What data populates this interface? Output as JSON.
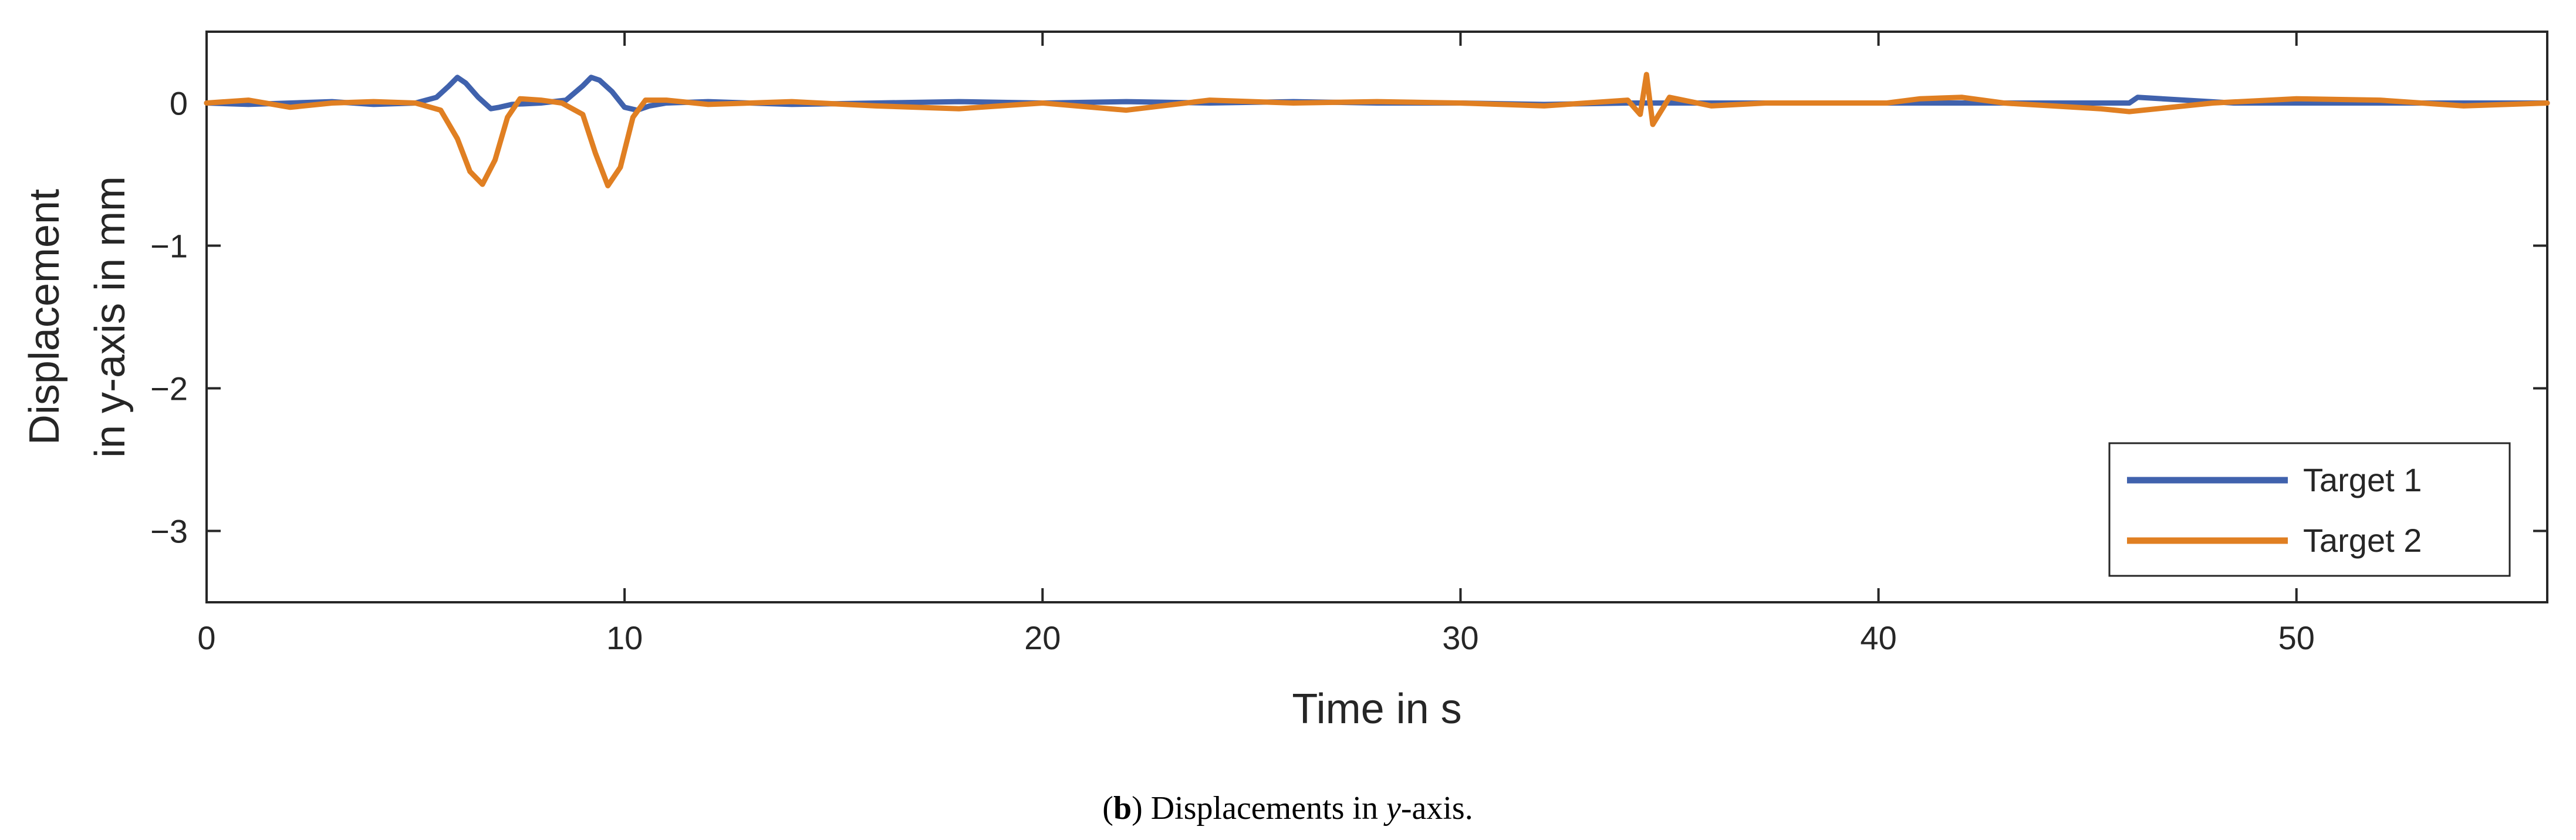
{
  "chart_data": {
    "type": "line",
    "caption": {
      "label": "b",
      "text_before": ") Displacements in ",
      "italic": "y",
      "text_after": "-axis."
    },
    "xlabel": "Time in s",
    "ylabel_lines": [
      "Displacement",
      "in y-axis in mm"
    ],
    "xlim": [
      0,
      56
    ],
    "ylim": [
      -3.5,
      0.5
    ],
    "xticks": [
      0,
      10,
      20,
      30,
      40,
      50
    ],
    "yticks": [
      0,
      -1,
      -2,
      -3
    ],
    "xtick_labels": [
      "0",
      "10",
      "20",
      "30",
      "40",
      "50"
    ],
    "ytick_labels": [
      "0",
      "−1",
      "−2",
      "−3"
    ],
    "legend_position": "bottom-right",
    "series": [
      {
        "name": "Target 1",
        "color": "#4062ad",
        "x": [
          0,
          1,
          2,
          3,
          4,
          5,
          5.5,
          5.8,
          6.0,
          6.2,
          6.5,
          6.8,
          7.0,
          7.3,
          8.0,
          8.6,
          9.0,
          9.2,
          9.4,
          9.7,
          10.0,
          10.3,
          10.6,
          11,
          12,
          14,
          16,
          18,
          20,
          22,
          24,
          26,
          28,
          30,
          32,
          34,
          36,
          38,
          40,
          42,
          44,
          46.0,
          46.2,
          48.5,
          50,
          52,
          54,
          56
        ],
        "values": [
          0,
          -0.01,
          0,
          0.01,
          -0.01,
          0,
          0.04,
          0.12,
          0.18,
          0.14,
          0.04,
          -0.04,
          -0.03,
          -0.01,
          0,
          0.02,
          0.12,
          0.18,
          0.16,
          0.08,
          -0.03,
          -0.05,
          -0.02,
          0,
          0.01,
          -0.01,
          0,
          0.01,
          0,
          0.01,
          0,
          0.01,
          0,
          0,
          -0.01,
          0,
          0,
          0,
          0,
          0,
          0,
          0,
          0.04,
          0,
          0,
          0,
          0,
          0
        ]
      },
      {
        "name": "Target 2",
        "color": "#e07f22",
        "x": [
          0,
          1,
          2,
          3,
          4,
          5,
          5.6,
          6.0,
          6.3,
          6.6,
          6.9,
          7.2,
          7.5,
          8.0,
          8.5,
          9.0,
          9.3,
          9.6,
          9.9,
          10.2,
          10.5,
          11,
          12,
          14,
          16,
          18,
          20,
          22,
          24,
          26,
          28,
          30,
          32,
          34,
          34.3,
          34.45,
          34.6,
          35,
          36,
          37.3,
          40.2,
          41,
          42,
          43,
          45.3,
          46,
          48,
          50,
          52,
          54,
          56
        ],
        "values": [
          0,
          0.02,
          -0.03,
          0,
          0.01,
          0,
          -0.05,
          -0.25,
          -0.48,
          -0.57,
          -0.4,
          -0.1,
          0.03,
          0.02,
          0,
          -0.08,
          -0.35,
          -0.58,
          -0.45,
          -0.1,
          0.02,
          0.02,
          -0.01,
          0.01,
          -0.02,
          -0.04,
          0,
          -0.05,
          0.02,
          0,
          0.01,
          0,
          -0.02,
          0.02,
          -0.08,
          0.2,
          -0.15,
          0.04,
          -0.02,
          0,
          0,
          0.03,
          0.04,
          0,
          -0.04,
          -0.06,
          0,
          0.03,
          0.02,
          -0.02,
          0
        ]
      }
    ]
  }
}
